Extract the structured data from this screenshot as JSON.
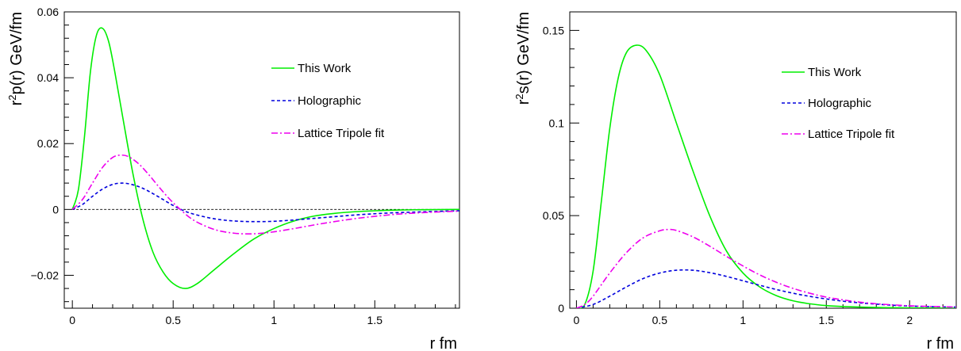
{
  "chart_data": [
    {
      "type": "line",
      "title": "",
      "xlabel": "r fm",
      "ylabel_base": "r",
      "ylabel_sup": "2",
      "ylabel_rest": "p(r) GeV/fm",
      "xlim": [
        -0.04,
        1.92
      ],
      "ylim": [
        -0.03,
        0.06
      ],
      "x_ticks": [
        "0",
        "0.5",
        "1",
        "1.5"
      ],
      "x_tick_values": [
        0,
        0.5,
        1,
        1.5
      ],
      "y_ticks": [
        "−0.02",
        "0",
        "0.02",
        "0.04",
        "0.06"
      ],
      "y_tick_values": [
        -0.02,
        0,
        0.02,
        0.04,
        0.06
      ],
      "zero_line": true,
      "legend_position": "top-right",
      "series": [
        {
          "name": "This Work",
          "color": "#00ee00",
          "dash": "solid",
          "x": [
            0,
            0.03,
            0.06,
            0.09,
            0.12,
            0.15,
            0.18,
            0.21,
            0.25,
            0.3,
            0.35,
            0.4,
            0.45,
            0.5,
            0.56,
            0.62,
            0.7,
            0.8,
            0.9,
            1.0,
            1.1,
            1.2,
            1.3,
            1.4,
            1.5,
            1.6,
            1.7,
            1.8,
            1.92
          ],
          "y": [
            0,
            0.006,
            0.022,
            0.042,
            0.053,
            0.055,
            0.051,
            0.042,
            0.028,
            0.011,
            -0.003,
            -0.013,
            -0.019,
            -0.0225,
            -0.024,
            -0.0225,
            -0.0185,
            -0.0135,
            -0.009,
            -0.0058,
            -0.0035,
            -0.002,
            -0.0012,
            -0.0007,
            -0.0004,
            -0.0002,
            -0.0001,
            -5e-05,
            0
          ]
        },
        {
          "name": "Holographic",
          "color": "#0000dd",
          "dash": "4,3",
          "x": [
            0,
            0.05,
            0.1,
            0.15,
            0.2,
            0.25,
            0.3,
            0.35,
            0.4,
            0.45,
            0.5,
            0.55,
            0.6,
            0.7,
            0.8,
            0.9,
            1.0,
            1.1,
            1.2,
            1.3,
            1.4,
            1.5,
            1.6,
            1.7,
            1.8,
            1.92
          ],
          "y": [
            0,
            0.0015,
            0.004,
            0.0062,
            0.0076,
            0.008,
            0.0075,
            0.0064,
            0.0048,
            0.003,
            0.0012,
            -0.0003,
            -0.0014,
            -0.0028,
            -0.0035,
            -0.0037,
            -0.0036,
            -0.0032,
            -0.0027,
            -0.0022,
            -0.0017,
            -0.0013,
            -0.001,
            -0.0008,
            -0.0006,
            -0.0004
          ]
        },
        {
          "name": "Lattice Tripole fit",
          "color": "#ee00ee",
          "dash": "8,3,2,3",
          "x": [
            0,
            0.05,
            0.1,
            0.15,
            0.2,
            0.24,
            0.28,
            0.33,
            0.38,
            0.43,
            0.48,
            0.53,
            0.6,
            0.7,
            0.8,
            0.9,
            1.0,
            1.1,
            1.2,
            1.3,
            1.4,
            1.5,
            1.6,
            1.7,
            1.8,
            1.92
          ],
          "y": [
            0,
            0.003,
            0.008,
            0.0128,
            0.0158,
            0.0165,
            0.016,
            0.0138,
            0.0105,
            0.0068,
            0.0033,
            0.0003,
            -0.0032,
            -0.006,
            -0.0072,
            -0.0074,
            -0.0068,
            -0.0058,
            -0.0047,
            -0.0037,
            -0.0028,
            -0.0021,
            -0.0015,
            -0.0011,
            -0.0008,
            -0.0005
          ]
        }
      ]
    },
    {
      "type": "line",
      "title": "",
      "xlabel": "r fm",
      "ylabel_base": "r",
      "ylabel_sup": "2",
      "ylabel_rest": "s(r) GeV/fm",
      "xlim": [
        -0.04,
        2.28
      ],
      "ylim": [
        0,
        0.16
      ],
      "x_ticks": [
        "0",
        "0.5",
        "1",
        "1.5",
        "2"
      ],
      "x_tick_values": [
        0,
        0.5,
        1,
        1.5,
        2
      ],
      "y_ticks": [
        "0",
        "0.05",
        "0.1",
        "0.15"
      ],
      "y_tick_values": [
        0,
        0.05,
        0.1,
        0.15
      ],
      "zero_line": false,
      "legend_position": "top-right",
      "series": [
        {
          "name": "This Work",
          "color": "#00ee00",
          "dash": "solid",
          "x": [
            0,
            0.05,
            0.1,
            0.15,
            0.2,
            0.25,
            0.3,
            0.36,
            0.42,
            0.5,
            0.6,
            0.7,
            0.8,
            0.9,
            1.0,
            1.1,
            1.2,
            1.3,
            1.4,
            1.5,
            1.6,
            1.8,
            2.0,
            2.28
          ],
          "y": [
            0,
            0.002,
            0.02,
            0.058,
            0.097,
            0.124,
            0.138,
            0.142,
            0.139,
            0.126,
            0.1,
            0.074,
            0.05,
            0.031,
            0.019,
            0.0115,
            0.0068,
            0.004,
            0.0024,
            0.0014,
            0.0009,
            0.0004,
            0.0002,
            0
          ]
        },
        {
          "name": "Holographic",
          "color": "#0000dd",
          "dash": "4,3",
          "x": [
            0,
            0.1,
            0.2,
            0.3,
            0.4,
            0.5,
            0.6,
            0.7,
            0.8,
            0.9,
            1.0,
            1.1,
            1.2,
            1.3,
            1.4,
            1.5,
            1.6,
            1.7,
            1.8,
            1.9,
            2.0,
            2.1,
            2.28
          ],
          "y": [
            0,
            0.002,
            0.0065,
            0.0115,
            0.016,
            0.019,
            0.0205,
            0.0205,
            0.0192,
            0.0172,
            0.0148,
            0.0124,
            0.0101,
            0.0081,
            0.0064,
            0.005,
            0.0038,
            0.0029,
            0.0022,
            0.0016,
            0.0012,
            0.0009,
            0.0006
          ]
        },
        {
          "name": "Lattice Tripole fit",
          "color": "#ee00ee",
          "dash": "8,3,2,3",
          "x": [
            0,
            0.05,
            0.1,
            0.2,
            0.3,
            0.4,
            0.5,
            0.55,
            0.6,
            0.7,
            0.8,
            0.9,
            1.0,
            1.1,
            1.2,
            1.3,
            1.4,
            1.5,
            1.6,
            1.7,
            1.8,
            1.9,
            2.0,
            2.1,
            2.28
          ],
          "y": [
            0,
            0.002,
            0.0065,
            0.019,
            0.03,
            0.038,
            0.0418,
            0.0425,
            0.042,
            0.0385,
            0.0335,
            0.028,
            0.0228,
            0.018,
            0.014,
            0.0107,
            0.0081,
            0.006,
            0.0045,
            0.0033,
            0.0024,
            0.0018,
            0.0013,
            0.001,
            0.0006
          ]
        }
      ]
    }
  ]
}
